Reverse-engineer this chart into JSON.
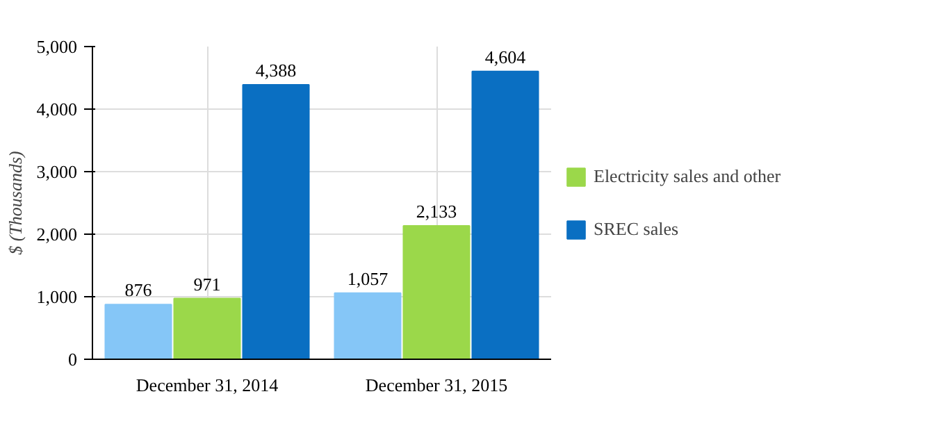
{
  "chart_data": {
    "type": "bar",
    "ylabel": "$ (Thousands)",
    "categories": [
      "December 31, 2014",
      "December 31, 2015"
    ],
    "series": [
      {
        "color": "#85c6f7",
        "values": [
          876,
          1057
        ],
        "value_labels": [
          "876",
          "1,057"
        ]
      },
      {
        "name": "Electricity sales and other",
        "color": "#9bd84a",
        "values": [
          971,
          2133
        ],
        "value_labels": [
          "971",
          "2,133"
        ]
      },
      {
        "name": "SREC sales",
        "color": "#0a6fc2",
        "values": [
          4388,
          4604
        ],
        "value_labels": [
          "4,388",
          "4,604"
        ]
      }
    ],
    "ylim": [
      0,
      5000
    ],
    "yticks": [
      {
        "value": 0,
        "label": "0"
      },
      {
        "value": 1000,
        "label": "1,000"
      },
      {
        "value": 2000,
        "label": "2,000"
      },
      {
        "value": 3000,
        "label": "3,000"
      },
      {
        "value": 4000,
        "label": "4,000"
      },
      {
        "value": 5000,
        "label": "5,000"
      }
    ],
    "grid": true,
    "legend": "right"
  }
}
